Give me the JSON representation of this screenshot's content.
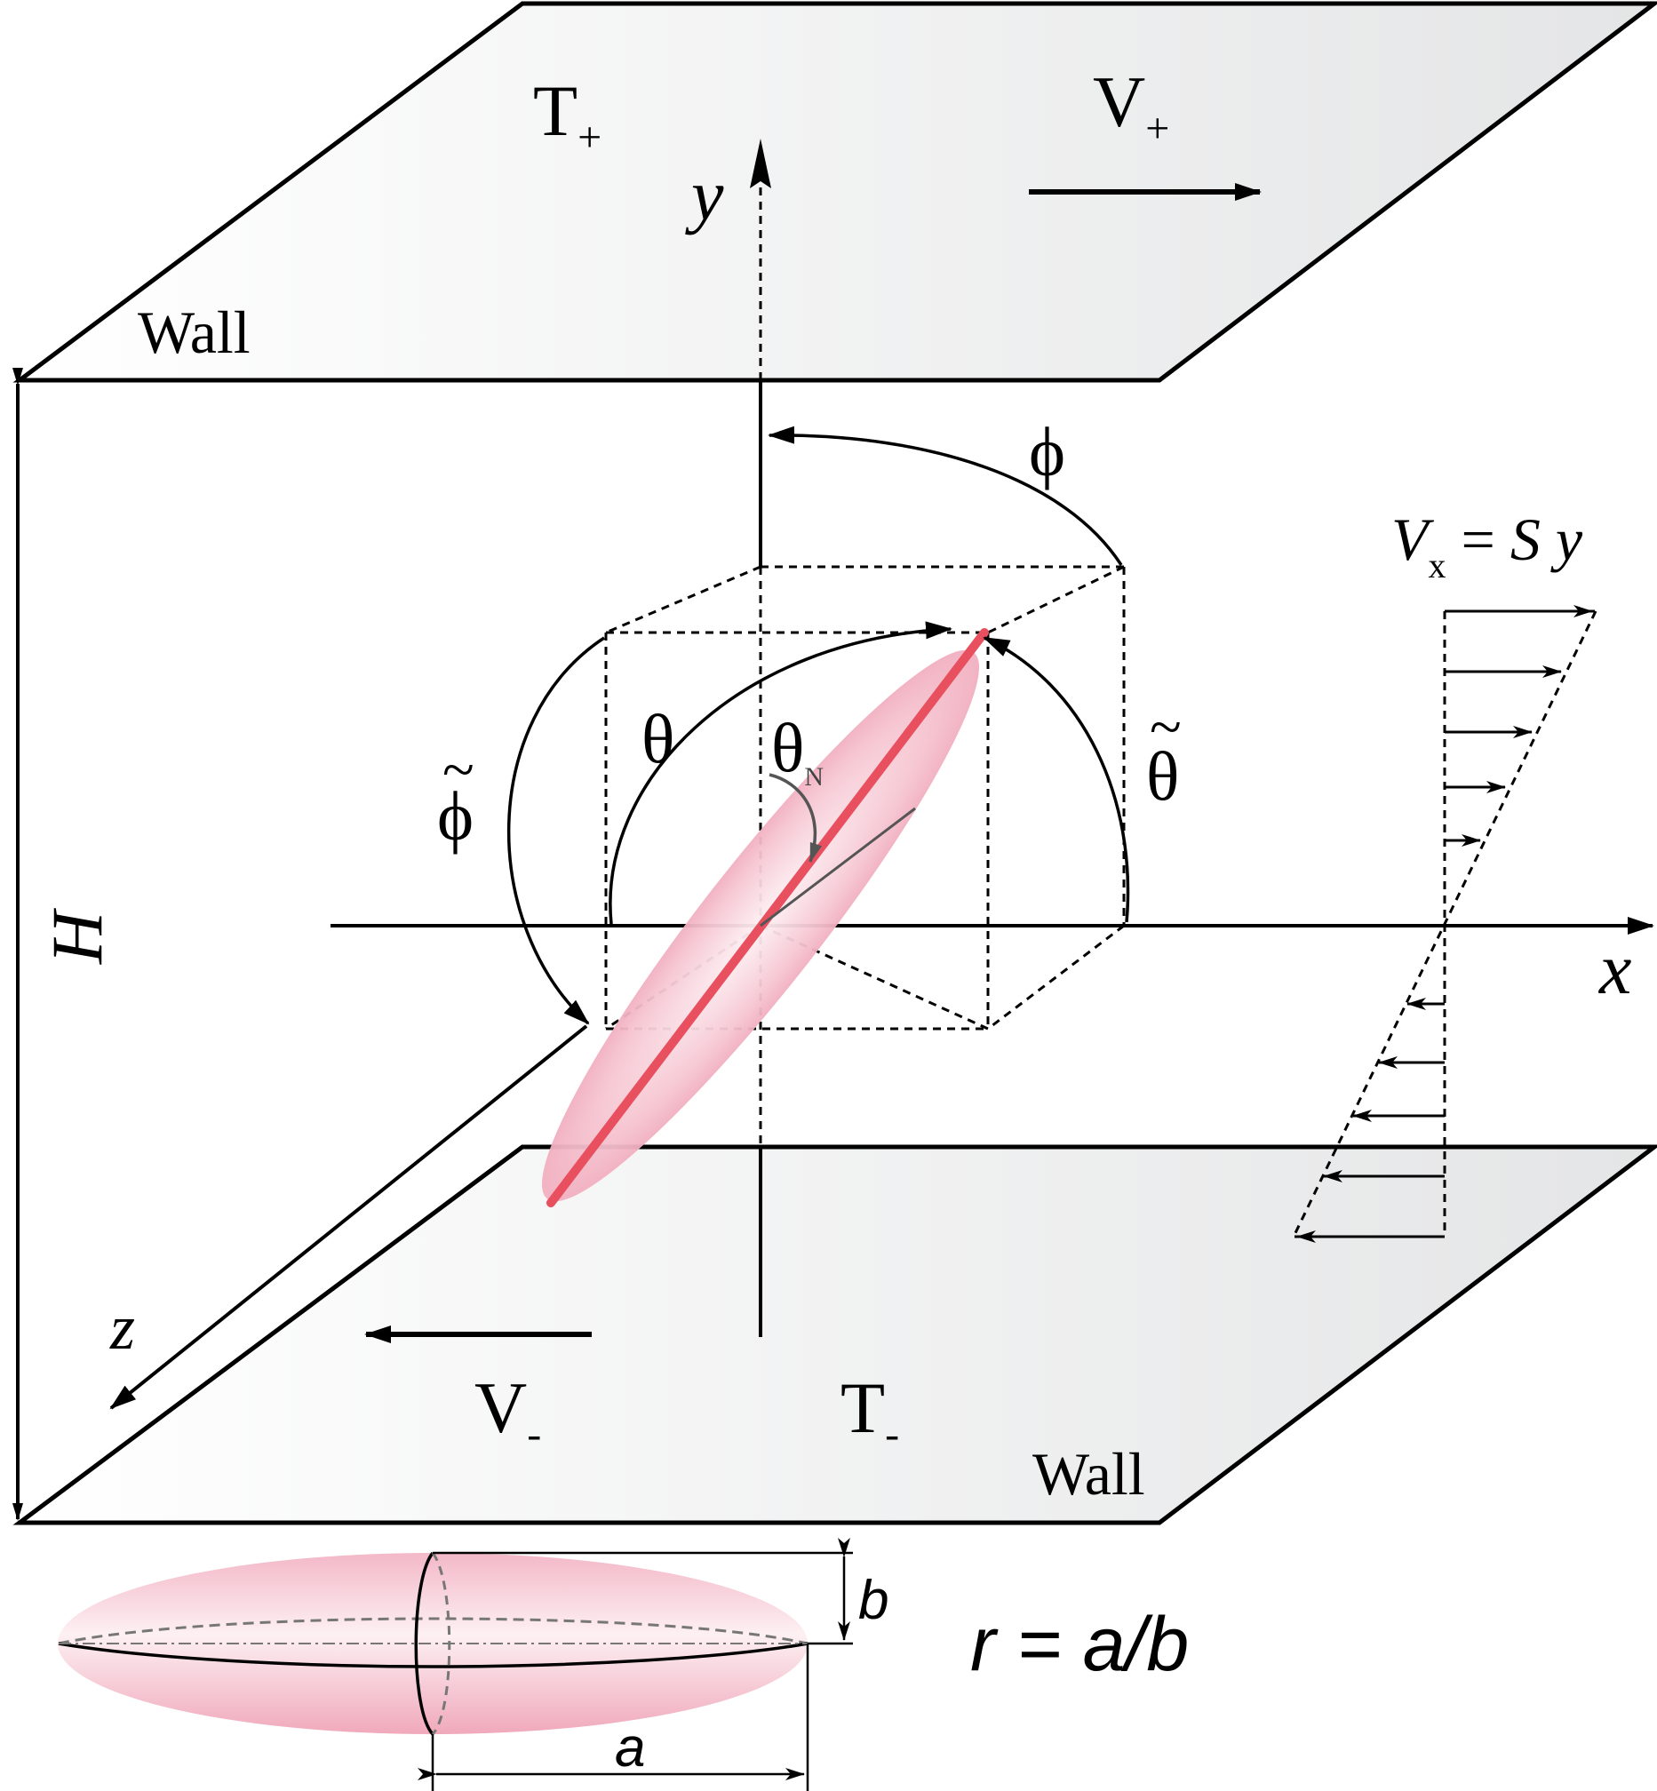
{
  "walls": {
    "top_label": "Wall",
    "bottom_label": "Wall",
    "top_temperature": {
      "main": "T",
      "sub": "+"
    },
    "bottom_temperature": {
      "main": "T",
      "sub": "-"
    },
    "top_velocity": {
      "main": "V",
      "sub": "+"
    },
    "bottom_velocity": {
      "main": "V",
      "sub": "-"
    }
  },
  "axes": {
    "x": "x",
    "y": "y",
    "z": "z",
    "height": "H"
  },
  "angles": {
    "phi": "ϕ",
    "theta": "θ",
    "theta_n": {
      "main": "θ",
      "sub": "N"
    },
    "phi_tilde": "ϕ",
    "theta_tilde": "θ",
    "tilde": "~"
  },
  "shear_profile": {
    "lhs": "V",
    "lhs_sub": "x",
    "rhs_op": " = ",
    "rhs_s": "S",
    "rhs_y": " y"
  },
  "spheroid": {
    "dim_a": "a",
    "dim_b": "b",
    "ratio_formula": "r = a/b"
  },
  "colors": {
    "spheroid_fill": "#f2b3c4",
    "rod": "#e8505f",
    "wall_fill_light": "#ffffff",
    "wall_fill_dark": "#e6e7e8",
    "line": "#000000"
  }
}
